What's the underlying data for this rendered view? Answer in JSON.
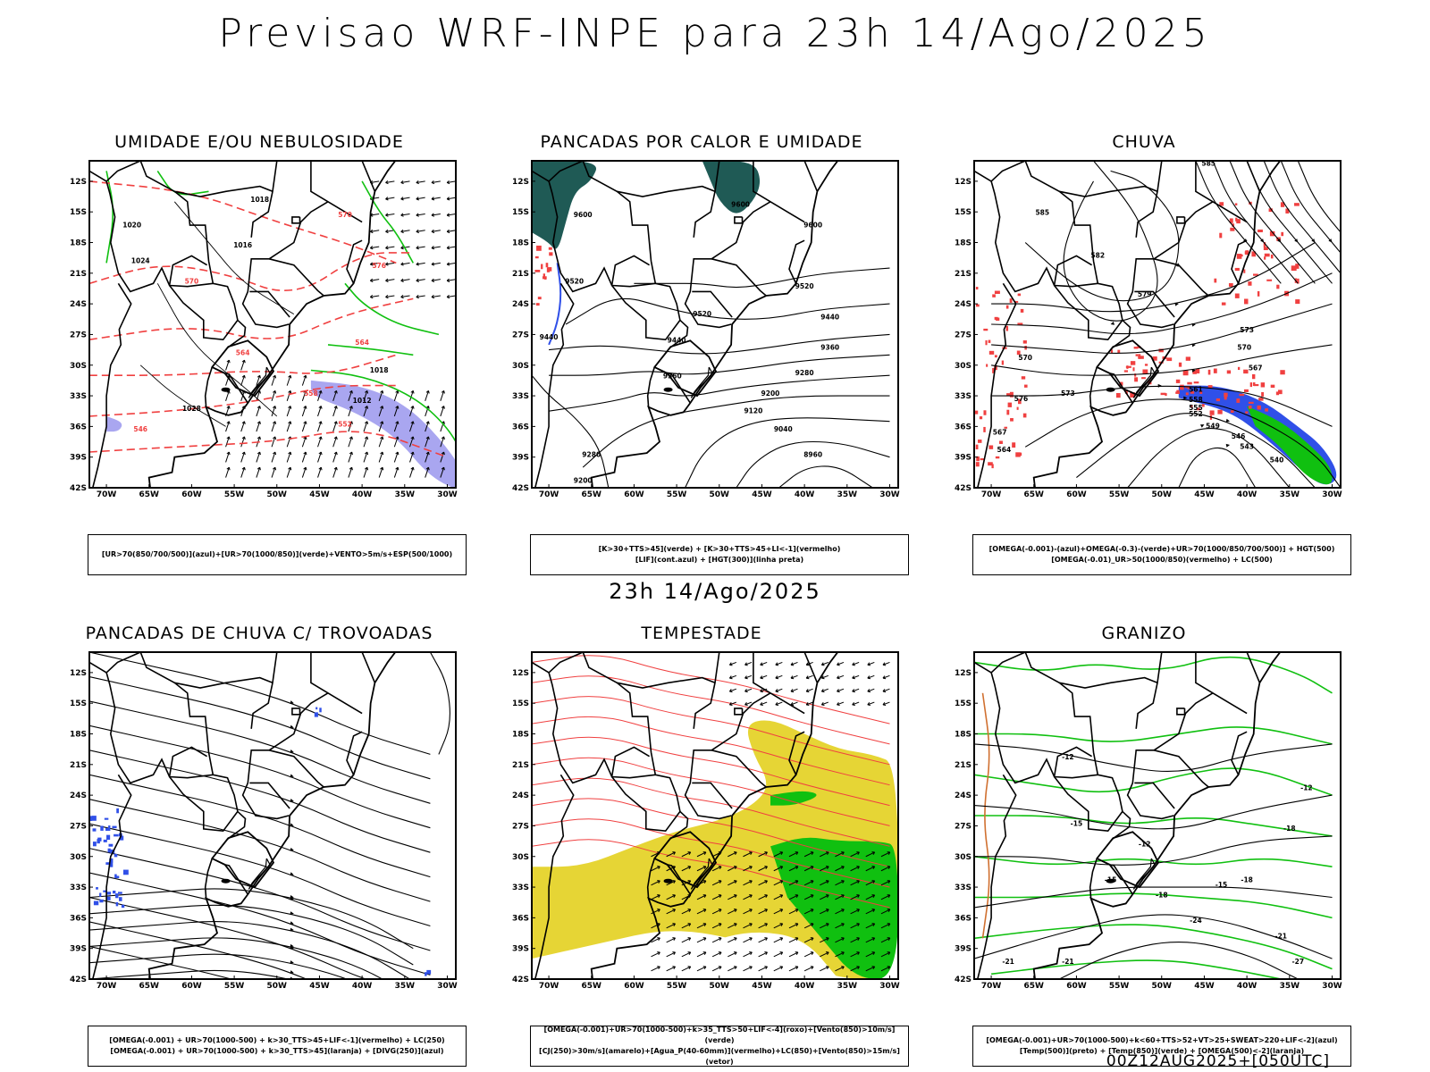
{
  "title": "Previsao WRF-INPE  para 23h 14/Ago/2025",
  "mid_date": "23h 14/Ago/2025",
  "footer": "00Z12AUG2025+[050UTC]",
  "lat_labels": [
    "12S",
    "15S",
    "18S",
    "21S",
    "24S",
    "27S",
    "30S",
    "33S",
    "36S",
    "39S",
    "42S"
  ],
  "lon_labels": [
    "70W",
    "65W",
    "60W",
    "55W",
    "50W",
    "45W",
    "40W",
    "35W",
    "30W"
  ],
  "panels": [
    {
      "title": "UMIDADE E/OU NEBULOSIDADE",
      "legend": [
        "[UR>70(850/700/500)](azul)+[UR>70(1000/850)](verde)+VENTO>5m/s+ESP(500/1000)"
      ],
      "contour_labels": [
        "1020",
        "1018",
        "1016",
        "1024",
        "1028",
        "1012",
        "570",
        "576",
        "564",
        "552",
        "546",
        "558"
      ]
    },
    {
      "title": "PANCADAS POR CALOR E UMIDADE",
      "legend": [
        "[K>30+TTS>45](verde) + [K>30+TTS>45+LI<-1](vermelho)",
        "[LIF](cont.azul) + [HGT(300)](linha preta)"
      ],
      "contour_labels": [
        "9600",
        "9520",
        "9440",
        "9360",
        "9280",
        "9200",
        "9120",
        "9040",
        "8960"
      ]
    },
    {
      "title": "CHUVA",
      "legend": [
        "[OMEGA(-0.001)-(azul)+OMEGA(-0.3)-(verde)+UR>70(1000/850/700/500)] + HGT(500)",
        "[OMEGA(-0.01)_UR>50(1000/850)(vermelho) + LC(500)"
      ],
      "contour_labels": [
        "585",
        "582",
        "579",
        "576",
        "573",
        "570",
        "567",
        "564",
        "561",
        "558",
        "555",
        "552",
        "549",
        "546",
        "543",
        "540"
      ]
    },
    {
      "title": "PANCADAS DE CHUVA C/ TROVOADAS",
      "legend": [
        "[OMEGA(-0.001) + UR>70(1000-500) + k>30_TTS>45+LIF<-1](vermelho) + LC(250)",
        "[OMEGA(-0.001) + UR>70(1000-500) + k>30_TTS>45](laranja) + [DIVG(250)](azul)"
      ],
      "contour_labels": []
    },
    {
      "title": "TEMPESTADE",
      "legend": [
        "[OMEGA(-0.001)+UR>70(1000-500)+k>35_TTS>50+LIF<-4](roxo)+[Vento(850)>10m/s](verde)",
        "[CJ(250)>30m/s](amarelo)+[Agua_P(40-60mm)](vermelho)+LC(850)+[Vento(850)>15m/s](vetor)"
      ],
      "contour_labels": []
    },
    {
      "title": "GRANIZO",
      "legend": [
        "[OMEGA(-0.001)+UR>70(1000-500)+k<60+TTS>52+VT>25+SWEAT>220+LIF<-2](azul)",
        "[Temp(500)](preto) + [Temp(850)](verde) + [OMEGA(500)<-2](laranja)"
      ],
      "contour_labels": [
        "-12",
        "-15",
        "-18",
        "-21",
        "-24",
        "-27"
      ]
    }
  ],
  "colors": {
    "blue": "#3050e8",
    "green": "#10c010",
    "red": "#f04040",
    "yellow": "#e6d535",
    "teal": "#1f5a55",
    "lavender": "#a9a6f0",
    "orange": "#d07030"
  }
}
